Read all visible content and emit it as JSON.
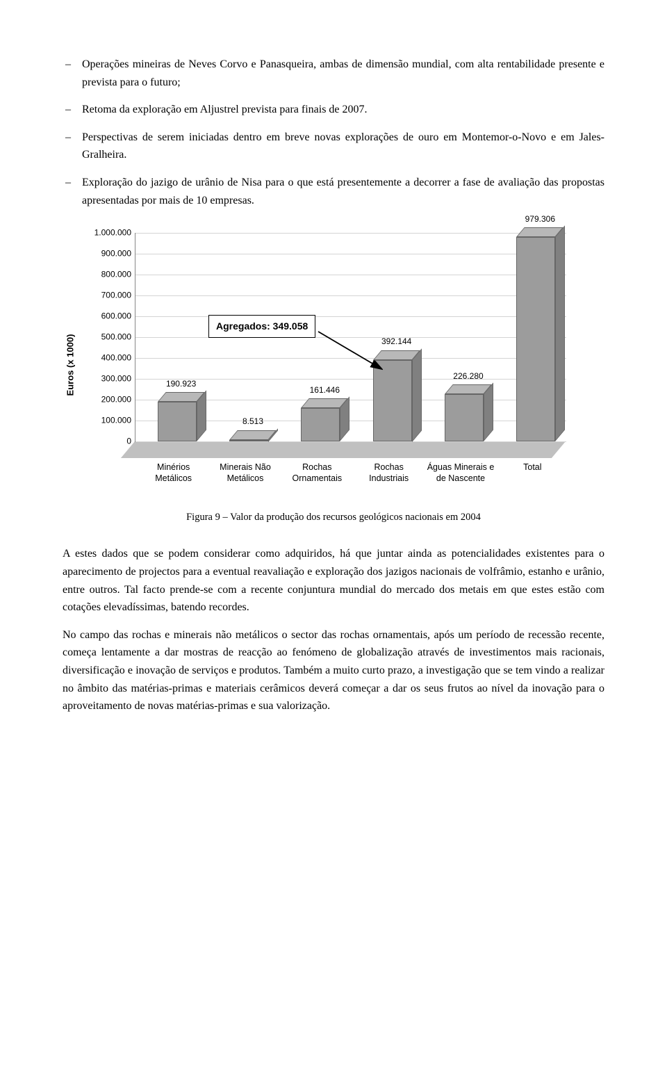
{
  "bullets": [
    "Operações mineiras de Neves Corvo e Panasqueira, ambas de dimensão mundial, com alta rentabilidade presente e prevista para o futuro;",
    "Retoma da exploração em Aljustrel prevista para finais de 2007.",
    "Perspectivas de serem iniciadas dentro em breve novas explorações de ouro em Montemor-o-Novo e em Jales-Gralheira.",
    "Exploração do jazigo de urânio de Nisa para o que está presentemente a decorrer a fase de avaliação das propostas apresentadas por mais de 10 empresas."
  ],
  "chart": {
    "type": "bar-3d",
    "ylabel": "Euros (x 1000)",
    "ylim": [
      0,
      1000000
    ],
    "ytick_step": 100000,
    "yticks": [
      "0",
      "100.000",
      "200.000",
      "300.000",
      "400.000",
      "500.000",
      "600.000",
      "700.000",
      "800.000",
      "900.000",
      "1.000.000"
    ],
    "categories": [
      "Minérios Metálicos",
      "Minerais Não Metálicos",
      "Rochas Ornamentais",
      "Rochas Industriais",
      "Águas Minerais e de Nascente",
      "Total"
    ],
    "values": [
      190923,
      8513,
      161446,
      392144,
      226280,
      979306
    ],
    "value_labels": [
      "190.923",
      "8.513",
      "161.446",
      "392.144",
      "226.280",
      "979.306"
    ],
    "bar_color_front": "#9c9c9c",
    "bar_color_top": "#b8b8b8",
    "bar_color_side": "#808080",
    "floor_color": "#c0c0c0",
    "grid_color": "#d4d4d4",
    "callout": "Agregados: 349.058"
  },
  "figcaption": "Figura 9 – Valor da produção dos recursos geológicos nacionais em 2004",
  "paragraphs": [
    "A estes dados que se podem considerar como adquiridos, há que juntar ainda as potencialidades existentes para o aparecimento de projectos para a eventual reavaliação e exploração dos jazigos nacionais de volfrâmio, estanho e urânio, entre outros. Tal facto prende-se com a recente conjuntura mundial do mercado dos metais em que estes estão com cotações elevadíssimas, batendo recordes.",
    "No campo das rochas e minerais não metálicos o sector das rochas ornamentais, após um período de recessão recente, começa lentamente a dar mostras de reacção ao fenómeno de globalização através de investimentos mais racionais, diversificação e inovação de serviços e produtos. Também a muito curto prazo, a investigação que se tem vindo a realizar no âmbito das matérias-primas e materiais cerâmicos deverá começar a dar os seus frutos ao nível da inovação para o aproveitamento de novas matérias-primas e sua valorização."
  ]
}
